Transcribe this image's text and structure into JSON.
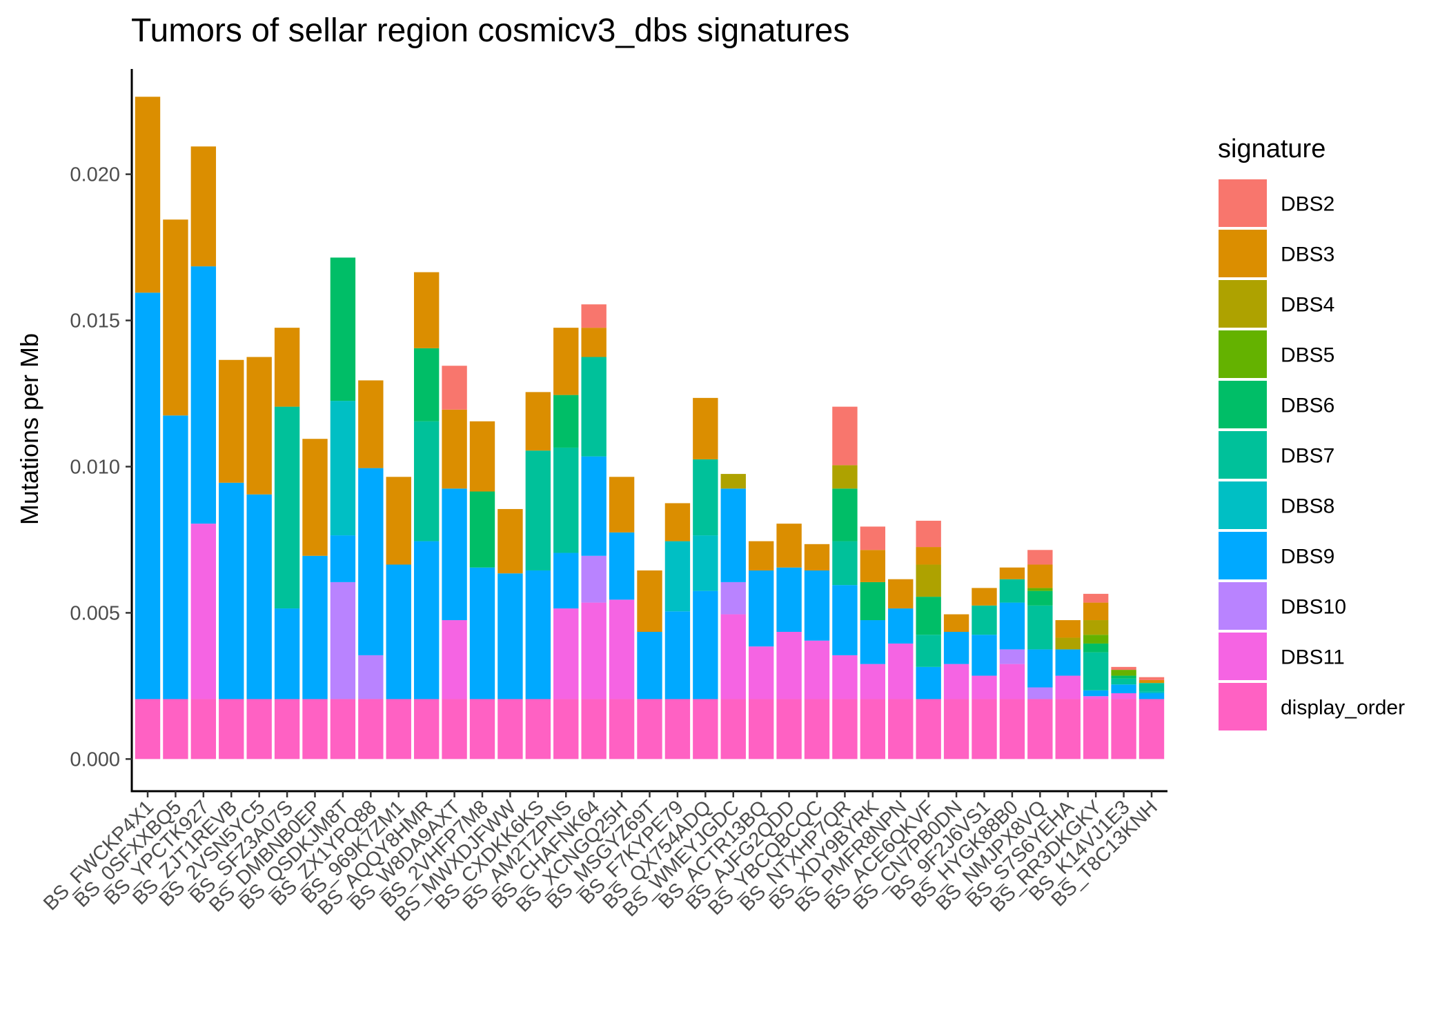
{
  "chart_data": {
    "type": "bar",
    "stacked": true,
    "title": "Tumors of sellar region cosmicv3_dbs signatures",
    "xlabel": "",
    "ylabel": "Mutations per Mb",
    "ylim": [
      -0.0011,
      0.0236
    ],
    "yticks": [
      "0.000",
      "0.005",
      "0.010",
      "0.015",
      "0.020"
    ],
    "ytick_values": [
      0,
      0.005,
      0.01,
      0.015,
      0.02
    ],
    "grid": false,
    "legend_position": "right",
    "legend_title": "signature",
    "categories": [
      "BS_FWCKP4X1",
      "BS_0SFXXBQ5",
      "BS_YPCTK927",
      "BS_ZJT1REVB",
      "BS_2VSN5YC5",
      "BS_SFZ3A07S",
      "BS_DMBNB0EP",
      "BS_QSDKJM8T",
      "BS_ZX1YPQ88",
      "BS_969K7ZM1",
      "BS_AQQY8HMR",
      "BS_W8DA9AXT",
      "BS_2VHFP7M8",
      "BS_MWXDJFWW",
      "BS_CXDKK6KS",
      "BS_AM2TZPNS",
      "BS_CHAFNK64",
      "BS_XCNGQ25H",
      "BS_MSGYZ69T",
      "BS_F7KYPE79",
      "BS_QX754ADQ",
      "BS_WMEYJGDC",
      "BS_ACTR13BQ",
      "BS_AJFG2QDD",
      "BS_YBCQBCQC",
      "BS_NTXHP7QR",
      "BS_XDY9BYRK",
      "BS_PMFR8NPN",
      "BS_ACE6QKVF",
      "BS_CN7PB0DN",
      "BS_9F2J6VS1",
      "BS_HYGK88B0",
      "BS_NMJPX8VQ",
      "BS_S7S6YEHA",
      "BS_RR3DKGKY",
      "BS_K14VJ1E3",
      "BS_T8C13KNH"
    ],
    "series": [
      {
        "name": "display_order",
        "color": "#FF61C3",
        "values": [
          0.00205,
          0.00205,
          0.00205,
          0.00205,
          0.00205,
          0.00205,
          0.00205,
          0.00205,
          0.00205,
          0.00205,
          0.00205,
          0.00205,
          0.00205,
          0.00205,
          0.00205,
          0.00205,
          0.00205,
          0.00205,
          0.00205,
          0.00205,
          0.00205,
          0.00205,
          0.00205,
          0.00205,
          0.00205,
          0.00205,
          0.00205,
          0.00205,
          0.00205,
          0.00205,
          0.00205,
          0.00205,
          0.00205,
          0.00205,
          0.00205,
          0.00205,
          0.00205
        ]
      },
      {
        "name": "DBS11",
        "color": "#F564E3",
        "values": [
          0,
          0,
          0.006,
          0,
          0,
          0,
          0,
          0,
          0,
          0,
          0,
          0.0027,
          0,
          0,
          0,
          0.0031,
          0.0033,
          0.0034,
          0,
          0,
          0,
          0.0029,
          0.0018,
          0.0023,
          0.002,
          0.0015,
          0.0012,
          0.0019,
          0,
          0.0012,
          0.0008,
          0.0012,
          0,
          0.0008,
          0.0001,
          0.0002,
          0
        ]
      },
      {
        "name": "DBS10",
        "color": "#B983FF",
        "values": [
          0,
          0,
          0,
          0,
          0,
          0,
          0,
          0.004,
          0.0015,
          0,
          0,
          0,
          0,
          0,
          0,
          0,
          0.0016,
          0,
          0,
          0,
          0,
          0.0011,
          0,
          0,
          0,
          0,
          0,
          0,
          0,
          0,
          0,
          0.0005,
          0.0004,
          0,
          0,
          0,
          0
        ]
      },
      {
        "name": "DBS9",
        "color": "#00A9FF",
        "values": [
          0.0139,
          0.0097,
          0.0088,
          0.0074,
          0.007,
          0.0031,
          0.0049,
          0.0016,
          0.0064,
          0.0046,
          0.0054,
          0.0045,
          0.0045,
          0.0043,
          0.0044,
          0.0019,
          0.0034,
          0.0023,
          0.0023,
          0.003,
          0.0037,
          0.0032,
          0.0026,
          0.0022,
          0.0024,
          0.0024,
          0.0015,
          0.0012,
          0.0011,
          0.0011,
          0.0014,
          0.0016,
          0.0013,
          0.0009,
          0.0002,
          0.0003,
          0.0002
        ]
      },
      {
        "name": "DBS8",
        "color": "#00BFC4",
        "values": [
          0,
          0,
          0,
          0,
          0,
          0,
          0,
          0.0046,
          0,
          0,
          0,
          0,
          0,
          0,
          0,
          0,
          0,
          0,
          0,
          0.0024,
          0.0019,
          0,
          0,
          0,
          0,
          0,
          0,
          0,
          0,
          0,
          0,
          0,
          0,
          0,
          0,
          0,
          5e-05
        ]
      },
      {
        "name": "DBS7",
        "color": "#00C19A",
        "values": [
          0,
          0,
          0,
          0,
          0,
          0.0069,
          0,
          0,
          0,
          0,
          0.0041,
          0,
          0,
          0,
          0.0041,
          0.0036,
          0.0034,
          0,
          0,
          0,
          0.0026,
          0,
          0,
          0,
          0,
          0.0015,
          0,
          0,
          0.0011,
          0,
          0.001,
          0.0008,
          0.0015,
          0,
          0.0013,
          0.0002,
          0.0003
        ]
      },
      {
        "name": "DBS6",
        "color": "#00BE67",
        "values": [
          0,
          0,
          0,
          0,
          0,
          0,
          0,
          0.0049,
          0,
          0,
          0.0025,
          0,
          0.0026,
          0,
          0,
          0.0018,
          0,
          0,
          0,
          0,
          0,
          0,
          0,
          0,
          0,
          0.0018,
          0.0013,
          0,
          0.0013,
          0,
          0,
          0,
          0.0005,
          0,
          0.0003,
          0.0001,
          0
        ]
      },
      {
        "name": "DBS5",
        "color": "#64B200",
        "values": [
          0,
          0,
          0,
          0,
          0,
          0,
          0,
          0,
          0,
          0,
          0,
          0,
          0,
          0,
          0,
          0,
          0,
          0,
          0,
          0,
          0,
          0,
          0,
          0,
          0,
          0,
          0,
          0,
          0,
          0,
          0,
          0,
          0.0001,
          0,
          0.0003,
          0.0002,
          0
        ]
      },
      {
        "name": "DBS4",
        "color": "#AEA200",
        "values": [
          0,
          0,
          0,
          0,
          0,
          0,
          0,
          0,
          0,
          0,
          0,
          0,
          0,
          0,
          0,
          0,
          0,
          0,
          0,
          0,
          0,
          0.0005,
          0,
          0,
          0,
          0.0008,
          0,
          0,
          0.0011,
          0,
          0,
          0,
          0,
          0.0004,
          0.0005,
          0,
          0
        ]
      },
      {
        "name": "DBS3",
        "color": "#DB8E00",
        "values": [
          0.0067,
          0.0067,
          0.0041,
          0.0042,
          0.0047,
          0.0027,
          0.004,
          0,
          0.003,
          0.003,
          0.0026,
          0.0027,
          0.0024,
          0.0022,
          0.002,
          0.0023,
          0.001,
          0.0019,
          0.0021,
          0.0013,
          0.0021,
          0,
          0.001,
          0.0015,
          0.0009,
          0,
          0.0011,
          0.001,
          0.0006,
          0.0006,
          0.0006,
          0.0004,
          0.0008,
          0.0006,
          0.0006,
          0,
          0.0001
        ]
      },
      {
        "name": "DBS2",
        "color": "#F8766D",
        "values": [
          0,
          0,
          0,
          0,
          0,
          0,
          0,
          0,
          0,
          0,
          0,
          0.0015,
          0,
          0,
          0,
          0,
          0.0008,
          0,
          0,
          0,
          0,
          0,
          0,
          0,
          0,
          0.002,
          0.0008,
          0,
          0.0009,
          0,
          0,
          0,
          0.0005,
          0,
          0.0003,
          0.0001,
          0.0001
        ]
      }
    ],
    "legend_order": [
      "DBS2",
      "DBS3",
      "DBS4",
      "DBS5",
      "DBS6",
      "DBS7",
      "DBS8",
      "DBS9",
      "DBS10",
      "DBS11",
      "display_order"
    ]
  }
}
